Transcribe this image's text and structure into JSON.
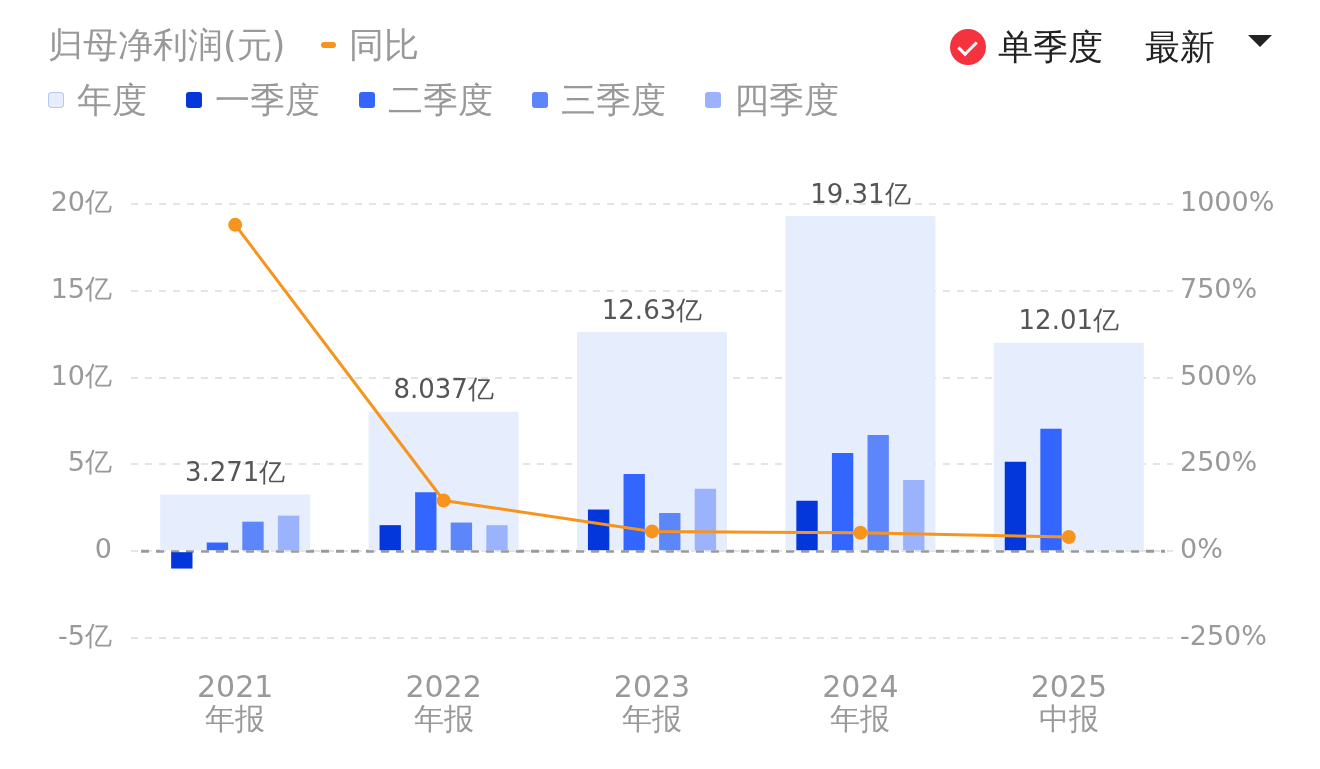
{
  "chart_data": {
    "type": "bar",
    "title": "归母净利润(元)",
    "categories": [
      "2021\n年报",
      "2022\n年报",
      "2023\n年报",
      "2024\n年报",
      "2025\n中报"
    ],
    "series": [
      {
        "name": "年度",
        "color": "#e6edfd",
        "values": [
          3.271,
          8.037,
          12.63,
          19.31,
          12.01
        ],
        "value_labels": [
          "3.271亿",
          "8.037亿",
          "12.63亿",
          "19.31亿",
          "12.01亿"
        ]
      },
      {
        "name": "一季度",
        "color": "#0336db",
        "values": [
          -1.0,
          1.5,
          2.4,
          2.9,
          5.15
        ]
      },
      {
        "name": "二季度",
        "color": "#3366ff",
        "values": [
          0.5,
          3.4,
          4.45,
          5.65,
          7.05
        ]
      },
      {
        "name": "三季度",
        "color": "#5e86fb",
        "values": [
          1.7,
          1.65,
          2.2,
          6.7,
          null
        ]
      },
      {
        "name": "四季度",
        "color": "#9bb3fd",
        "values": [
          2.05,
          1.5,
          3.6,
          4.1,
          null
        ]
      },
      {
        "name": "同比",
        "type": "line",
        "axis": "y2",
        "color": "#f7941d",
        "values": [
          940,
          146,
          57,
          53,
          41
        ]
      }
    ],
    "ylim": [
      -5,
      20
    ],
    "yticks": [
      {
        "value": -5,
        "label": "-5亿"
      },
      0,
      {
        "value": 5,
        "label": "5亿"
      },
      {
        "value": 10,
        "label": "10亿"
      },
      {
        "value": 15,
        "label": "15亿"
      },
      {
        "value": 20,
        "label": "20亿"
      }
    ],
    "y2lim": [
      -250,
      1000
    ],
    "y2ticks": [
      {
        "value": -250,
        "label": "-250%"
      },
      {
        "value": 0,
        "label": "0%"
      },
      {
        "value": 250,
        "label": "250%"
      },
      {
        "value": 500,
        "label": "500%"
      },
      {
        "value": 750,
        "label": "750%"
      },
      {
        "value": 1000,
        "label": "1000%"
      }
    ],
    "ref_lines": [
      {
        "axis": "y",
        "value": 0,
        "color": "#9a9a9a",
        "line_style": "dashed"
      }
    ],
    "grid": "y",
    "legend": "top left",
    "marker": "circle",
    "annotations": [
      "单季度",
      "最新"
    ]
  }
}
